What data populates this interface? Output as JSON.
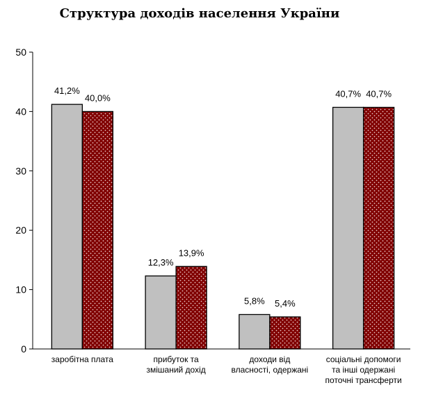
{
  "chart_data": {
    "type": "bar",
    "title": "Структура доходів населення України",
    "xlabel": "",
    "ylabel": "",
    "ylim": [
      0,
      50
    ],
    "yticks": [
      0,
      10,
      20,
      30,
      40,
      50
    ],
    "grid": false,
    "legend": "none",
    "categories": [
      [
        "заробітна плата"
      ],
      [
        "прибуток та",
        "змішаний дохід"
      ],
      [
        "доходи від",
        "власності, одержані"
      ],
      [
        "соціальні допомоги",
        "та інші одержані",
        "поточні трансферти"
      ]
    ],
    "series": [
      {
        "values": [
          41.2,
          12.3,
          5.8,
          40.7
        ],
        "labels": [
          "41,2%",
          "12,3%",
          "5,8%",
          "40,7%"
        ],
        "color": "#c0c0c0",
        "pattern": "solid"
      },
      {
        "values": [
          40.0,
          13.9,
          5.4,
          40.7
        ],
        "labels": [
          "40,0%",
          "13,9%",
          "5,4%",
          "40,7%"
        ],
        "color": "#800000",
        "dot_color": "#e8c8c8",
        "pattern": "dotted"
      }
    ]
  }
}
